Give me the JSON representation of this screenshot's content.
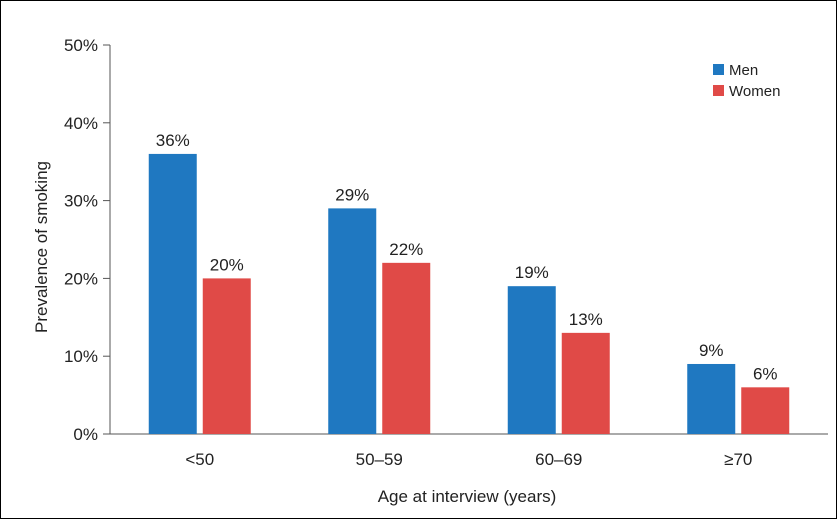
{
  "chart_data": {
    "type": "bar",
    "xlabel": "Age at interview (years)",
    "ylabel": "Prevalence of smoking",
    "categories": [
      "<50",
      "50–59",
      "60–69",
      "≥70"
    ],
    "ylim": [
      0,
      50
    ],
    "yticks": [
      0,
      10,
      20,
      30,
      40,
      50
    ],
    "ytick_labels": [
      "0%",
      "10%",
      "20%",
      "30%",
      "40%",
      "50%"
    ],
    "grid": false,
    "legend_position": "top-right",
    "series": [
      {
        "name": "Men",
        "color": "#1f78c1",
        "values": [
          36,
          29,
          19,
          9
        ],
        "labels": [
          "36%",
          "29%",
          "19%",
          "9%"
        ]
      },
      {
        "name": "Women",
        "color": "#e04a47",
        "values": [
          20,
          22,
          13,
          6
        ],
        "labels": [
          "20%",
          "22%",
          "13%",
          "6%"
        ]
      }
    ]
  }
}
